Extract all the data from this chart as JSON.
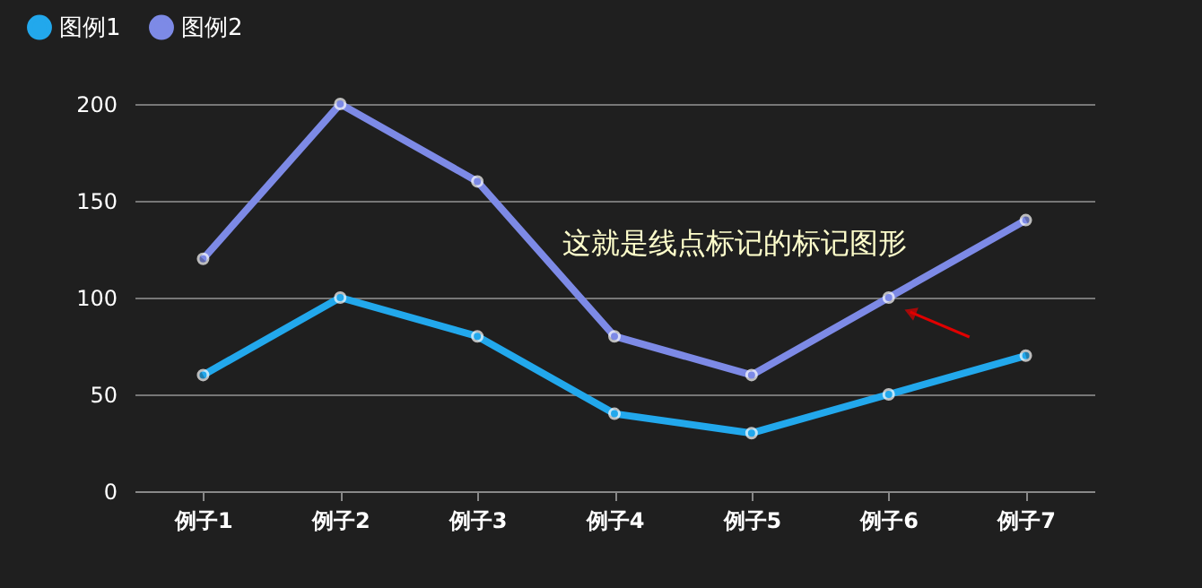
{
  "chart_data": {
    "type": "line",
    "categories": [
      "例子1",
      "例子2",
      "例子3",
      "例子4",
      "例子5",
      "例子6",
      "例子7"
    ],
    "series": [
      {
        "name": "图例1",
        "color": "#22a8ec",
        "values": [
          60,
          100,
          80,
          40,
          30,
          50,
          70
        ]
      },
      {
        "name": "图例2",
        "color": "#7d8ae6",
        "values": [
          120,
          200,
          160,
          80,
          60,
          100,
          140
        ]
      }
    ],
    "ylim": [
      0,
      200
    ],
    "yticks": [
      0,
      50,
      100,
      150,
      200
    ],
    "grid": "y",
    "legend": "top left",
    "marker": "circle",
    "line_style": "solid",
    "annotations": [
      {
        "text": "这就是线点标记的标记图形",
        "x": "例子6",
        "y": 100
      }
    ]
  }
}
